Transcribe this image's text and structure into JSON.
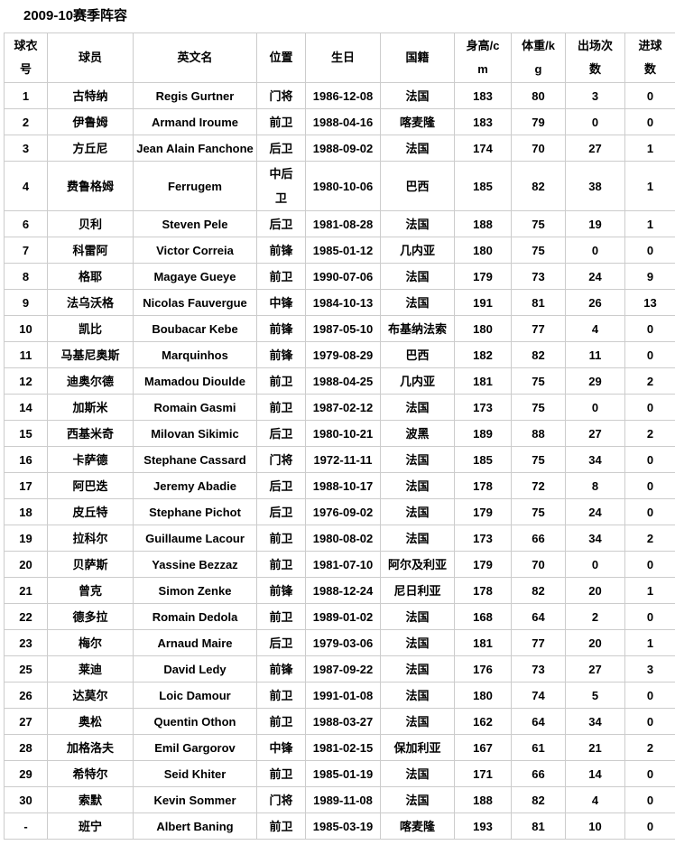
{
  "page": {
    "title": "2009-10赛季阵容"
  },
  "colors": {
    "table_border": "#cccccc",
    "text": "#000000",
    "background": "#ffffff"
  },
  "table": {
    "headers": [
      "球衣\n号",
      "球员",
      "英文名",
      "位置",
      "生日",
      "国籍",
      "身高/c\nm",
      "体重/k\ng",
      "出场次\n数",
      "进球\n数"
    ],
    "rows": [
      [
        "1",
        "古特纳",
        "Regis Gurtner",
        "门将",
        "1986-12-08",
        "法国",
        "183",
        "80",
        "3",
        "0"
      ],
      [
        "2",
        "伊鲁姆",
        "Armand Iroume",
        "前卫",
        "1988-04-16",
        "喀麦隆",
        "183",
        "79",
        "0",
        "0"
      ],
      [
        "3",
        "方丘尼",
        "Jean Alain Fanchone",
        "后卫",
        "1988-09-02",
        "法国",
        "174",
        "70",
        "27",
        "1"
      ],
      [
        "4",
        "费鲁格姆",
        "Ferrugem",
        "中后\n卫",
        "1980-10-06",
        "巴西",
        "185",
        "82",
        "38",
        "1"
      ],
      [
        "6",
        "贝利",
        "Steven Pele",
        "后卫",
        "1981-08-28",
        "法国",
        "188",
        "75",
        "19",
        "1"
      ],
      [
        "7",
        "科雷阿",
        "Victor Correia",
        "前锋",
        "1985-01-12",
        "几内亚",
        "180",
        "75",
        "0",
        "0"
      ],
      [
        "8",
        "格耶",
        "Magaye Gueye",
        "前卫",
        "1990-07-06",
        "法国",
        "179",
        "73",
        "24",
        "9"
      ],
      [
        "9",
        "法乌沃格",
        "Nicolas Fauvergue",
        "中锋",
        "1984-10-13",
        "法国",
        "191",
        "81",
        "26",
        "13"
      ],
      [
        "10",
        "凯比",
        "Boubacar Kebe",
        "前锋",
        "1987-05-10",
        "布基纳法索",
        "180",
        "77",
        "4",
        "0"
      ],
      [
        "11",
        "马基尼奥斯",
        "Marquinhos",
        "前锋",
        "1979-08-29",
        "巴西",
        "182",
        "82",
        "11",
        "0"
      ],
      [
        "12",
        "迪奥尔德",
        "Mamadou Dioulde",
        "前卫",
        "1988-04-25",
        "几内亚",
        "181",
        "75",
        "29",
        "2"
      ],
      [
        "14",
        "加斯米",
        "Romain Gasmi",
        "前卫",
        "1987-02-12",
        "法国",
        "173",
        "75",
        "0",
        "0"
      ],
      [
        "15",
        "西基米奇",
        "Milovan Sikimic",
        "后卫",
        "1980-10-21",
        "波黑",
        "189",
        "88",
        "27",
        "2"
      ],
      [
        "16",
        "卡萨德",
        "Stephane Cassard",
        "门将",
        "1972-11-11",
        "法国",
        "185",
        "75",
        "34",
        "0"
      ],
      [
        "17",
        "阿巴迭",
        "Jeremy Abadie",
        "后卫",
        "1988-10-17",
        "法国",
        "178",
        "72",
        "8",
        "0"
      ],
      [
        "18",
        "皮丘特",
        "Stephane Pichot",
        "后卫",
        "1976-09-02",
        "法国",
        "179",
        "75",
        "24",
        "0"
      ],
      [
        "19",
        "拉科尔",
        "Guillaume Lacour",
        "前卫",
        "1980-08-02",
        "法国",
        "173",
        "66",
        "34",
        "2"
      ],
      [
        "20",
        "贝萨斯",
        "Yassine Bezzaz",
        "前卫",
        "1981-07-10",
        "阿尔及利亚",
        "179",
        "70",
        "0",
        "0"
      ],
      [
        "21",
        "曾克",
        "Simon Zenke",
        "前锋",
        "1988-12-24",
        "尼日利亚",
        "178",
        "82",
        "20",
        "1"
      ],
      [
        "22",
        "德多拉",
        "Romain Dedola",
        "前卫",
        "1989-01-02",
        "法国",
        "168",
        "64",
        "2",
        "0"
      ],
      [
        "23",
        "梅尔",
        "Arnaud Maire",
        "后卫",
        "1979-03-06",
        "法国",
        "181",
        "77",
        "20",
        "1"
      ],
      [
        "25",
        "莱迪",
        "David Ledy",
        "前锋",
        "1987-09-22",
        "法国",
        "176",
        "73",
        "27",
        "3"
      ],
      [
        "26",
        "达莫尔",
        "Loic Damour",
        "前卫",
        "1991-01-08",
        "法国",
        "180",
        "74",
        "5",
        "0"
      ],
      [
        "27",
        "奥松",
        "Quentin Othon",
        "前卫",
        "1988-03-27",
        "法国",
        "162",
        "64",
        "34",
        "0"
      ],
      [
        "28",
        "加格洛夫",
        "Emil Gargorov",
        "中锋",
        "1981-02-15",
        "保加利亚",
        "167",
        "61",
        "21",
        "2"
      ],
      [
        "29",
        "希特尔",
        "Seid Khiter",
        "前卫",
        "1985-01-19",
        "法国",
        "171",
        "66",
        "14",
        "0"
      ],
      [
        "30",
        "索默",
        "Kevin Sommer",
        "门将",
        "1989-11-08",
        "法国",
        "188",
        "82",
        "4",
        "0"
      ],
      [
        "-",
        "班宁",
        "Albert Baning",
        "前卫",
        "1985-03-19",
        "喀麦隆",
        "193",
        "81",
        "10",
        "0"
      ]
    ]
  }
}
